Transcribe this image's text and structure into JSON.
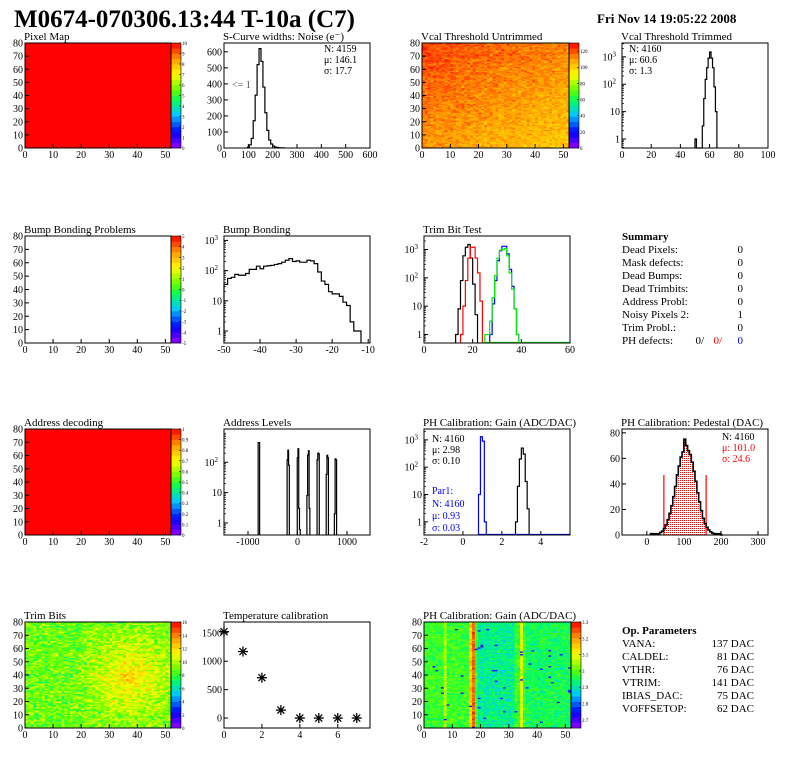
{
  "header": {
    "title": "M0674-070306.13:44 T-10a (C7)",
    "date": "Fri Nov 14 19:05:22 2008"
  },
  "palette": [
    "#9600ff",
    "#0000ff",
    "#00c8ff",
    "#00ff60",
    "#60ff00",
    "#ffff00",
    "#ff9900",
    "#ff0000"
  ],
  "chart_data": [
    {
      "id": "pixel_map",
      "type": "heatmap",
      "title": "Pixel Map",
      "xlim": [
        0,
        52
      ],
      "ylim": [
        0,
        80
      ],
      "xticks": [
        0,
        10,
        20,
        30,
        40,
        50
      ],
      "yticks": [
        0,
        10,
        20,
        30,
        40,
        50,
        60,
        70,
        80
      ],
      "zlim": [
        0,
        10
      ],
      "zticks": [
        0,
        1,
        2,
        3,
        4,
        5,
        6,
        7,
        8,
        9,
        10
      ],
      "constant_value": 10
    },
    {
      "id": "scurve",
      "type": "bar",
      "title": "S-Curve widths: Noise (e⁻)",
      "xlim": [
        0,
        600
      ],
      "ylim": [
        0,
        655
      ],
      "log_y": false,
      "xticks": [
        0,
        100,
        200,
        300,
        400,
        500,
        600
      ],
      "yticks": [
        0,
        100,
        200,
        300,
        400,
        500,
        600
      ],
      "series": [
        {
          "color": "#000000",
          "start": 96,
          "width": 8,
          "values": [
            5,
            20,
            60,
            170,
            330,
            520,
            620,
            540,
            380,
            220,
            110,
            50,
            25,
            12,
            6,
            3,
            2,
            1,
            1
          ]
        }
      ],
      "stats": [
        {
          "text": "N: 4159",
          "color": "#000000"
        },
        {
          "text": "μ: 146.1",
          "color": "#000000"
        },
        {
          "text": "σ: 17.7",
          "color": "#000000"
        }
      ],
      "annotation": "<= 1"
    },
    {
      "id": "vcal_untrimmed",
      "type": "heatmap",
      "title": "Vcal Threshold Untrimmed",
      "xlim": [
        0,
        52
      ],
      "ylim": [
        0,
        80
      ],
      "xticks": [
        0,
        10,
        20,
        30,
        40,
        50
      ],
      "yticks": [
        0,
        10,
        20,
        30,
        40,
        50,
        60,
        70,
        80
      ],
      "zlim": [
        0,
        130
      ],
      "zticks": [
        0,
        20,
        40,
        60,
        80,
        100,
        120
      ]
    },
    {
      "id": "vcal_trimmed",
      "type": "bar",
      "title": "Vcal Threshold Trimmed",
      "xlim": [
        0,
        100
      ],
      "ylim": [
        0.47,
        3200
      ],
      "log_y": true,
      "xticks": [
        0,
        20,
        40,
        60,
        80,
        100
      ],
      "yticks": [
        1,
        10,
        100,
        1000
      ],
      "series": [
        {
          "color": "#000000",
          "start": 50,
          "width": 1,
          "values": [
            1,
            0,
            0,
            0,
            0,
            3,
            30,
            150,
            400,
            900,
            1500,
            900,
            400,
            80,
            10
          ]
        }
      ],
      "stats": [
        {
          "text": "N: 4160",
          "color": "#000000"
        },
        {
          "text": "μ: 60.6",
          "color": "#000000"
        },
        {
          "text": "σ:  1.3",
          "color": "#000000"
        }
      ]
    },
    {
      "id": "bump_map",
      "type": "heatmap",
      "title": "Bump Bonding Problems",
      "xlim": [
        0,
        52
      ],
      "ylim": [
        0,
        80
      ],
      "xticks": [
        0,
        10,
        20,
        30,
        40,
        50
      ],
      "yticks": [
        0,
        10,
        20,
        30,
        40,
        50,
        60,
        70,
        80
      ],
      "zlim": [
        -5,
        5
      ],
      "zticks": [
        -5,
        -4,
        -3,
        -2,
        -1,
        0,
        1,
        2,
        3,
        4,
        5
      ],
      "empty": true
    },
    {
      "id": "bump_bonding",
      "type": "bar",
      "title": "Bump Bonding",
      "xlim": [
        -50,
        -9.5
      ],
      "ylim": [
        0.4,
        1400
      ],
      "log_y": true,
      "xticks": [
        -50,
        -40,
        -30,
        -20,
        -10
      ],
      "yticks": [
        1,
        10,
        100,
        1000
      ],
      "series": [
        {
          "color": "#000000",
          "start": -50,
          "width": 1,
          "values": [
            35,
            55,
            60,
            75,
            70,
            70,
            80,
            110,
            110,
            140,
            115,
            140,
            145,
            150,
            160,
            170,
            190,
            220,
            250,
            200,
            210,
            190,
            190,
            220,
            210,
            170,
            90,
            45,
            35,
            20,
            17,
            17,
            14,
            9,
            7,
            2,
            1,
            1
          ]
        }
      ]
    },
    {
      "id": "trim_bit_test",
      "type": "bar",
      "title": "Trim Bit Test",
      "xlim": [
        0,
        60
      ],
      "ylim": [
        0.5,
        3000
      ],
      "log_y": true,
      "xticks": [
        0,
        20,
        40,
        60
      ],
      "yticks": [
        1,
        10,
        100,
        1000
      ],
      "series": [
        {
          "color": "#000000",
          "start": 13,
          "width": 1,
          "values": [
            1,
            8,
            80,
            600,
            1200,
            1500,
            500,
            60,
            5
          ]
        },
        {
          "color": "#ff0000",
          "start": 15,
          "width": 1,
          "values": [
            1,
            10,
            80,
            500,
            1200,
            1200,
            500,
            150,
            15
          ]
        },
        {
          "color": "#0000ff",
          "start": 27,
          "width": 1,
          "values": [
            1,
            12,
            80,
            400,
            900,
            1300,
            1300,
            700,
            200,
            50,
            8,
            1
          ]
        },
        {
          "color": "#00ee00",
          "start": 25,
          "width": 1,
          "values": [
            1,
            1,
            3,
            20,
            120,
            500,
            950,
            1000,
            1100,
            600,
            150,
            40,
            8,
            1
          ]
        }
      ]
    },
    {
      "id": "address_decoding",
      "type": "heatmap",
      "title": "Address decoding",
      "xlim": [
        0,
        52
      ],
      "ylim": [
        0,
        80
      ],
      "xticks": [
        0,
        10,
        20,
        30,
        40,
        50
      ],
      "yticks": [
        0,
        10,
        20,
        30,
        40,
        50,
        60,
        70,
        80
      ],
      "zlim": [
        0,
        1
      ],
      "zticks": [
        0,
        0.1,
        0.2,
        0.3,
        0.4,
        0.5,
        0.6,
        0.7,
        0.8,
        0.9,
        1
      ],
      "constant_value": 1
    },
    {
      "id": "address_levels",
      "type": "bar",
      "title": "Address Levels",
      "xlim": [
        -1485,
        1465
      ],
      "ylim": [
        0.4,
        1250
      ],
      "log_y": true,
      "xticks": [
        -1000,
        0,
        1000
      ],
      "yticks": [
        1,
        10,
        100
      ],
      "series": [
        {
          "color": "#000000",
          "start": -795,
          "width": 15,
          "values": [
            450,
            450
          ]
        },
        {
          "color": "#000000",
          "start": -210,
          "width": 15,
          "values": [
            120,
            250,
            80
          ]
        },
        {
          "color": "#000000",
          "start": -5,
          "width": 15,
          "values": [
            140,
            280,
            3,
            0.6
          ]
        },
        {
          "color": "#000000",
          "start": 190,
          "width": 15,
          "values": [
            8,
            170,
            240,
            3
          ]
        },
        {
          "color": "#000000",
          "start": 395,
          "width": 15,
          "values": [
            120,
            200,
            190
          ]
        },
        {
          "color": "#000000",
          "start": 580,
          "width": 15,
          "values": [
            40,
            170,
            140
          ]
        },
        {
          "color": "#000000",
          "start": 745,
          "width": 15,
          "values": [
            2,
            130,
            120
          ]
        }
      ]
    },
    {
      "id": "ph_gain_hist",
      "type": "bar",
      "title": "PH Calibration: Gain (ADC/DAC)",
      "xlim": [
        -2,
        5.5
      ],
      "ylim": [
        0.33,
        2500
      ],
      "log_y": true,
      "xticks": [
        -2,
        0,
        2,
        4
      ],
      "yticks": [
        1,
        10,
        100,
        1000
      ],
      "series": [
        {
          "color": "#000000",
          "start": 2.7,
          "width": 0.1,
          "values": [
            1,
            20,
            200,
            500,
            300,
            30,
            3
          ]
        },
        {
          "color": "#0000ff",
          "start": 0.8,
          "width": 0.1,
          "values": [
            10,
            1300,
            900,
            1
          ]
        }
      ],
      "stats": [
        {
          "text": "N: 4160",
          "color": "#000000"
        },
        {
          "text": "μ: 2.98",
          "color": "#000000"
        },
        {
          "text": "σ: 0.10",
          "color": "#000000"
        }
      ],
      "stats2": [
        {
          "text": "Par1:",
          "color": "#0000ff"
        },
        {
          "text": "N: 4160",
          "color": "#0000ff"
        },
        {
          "text": "μ: 0.93",
          "color": "#0000ff"
        },
        {
          "text": "σ: 0.03",
          "color": "#0000ff"
        }
      ]
    },
    {
      "id": "ph_pedestal",
      "type": "bar",
      "title": "PH Calibration: Pedestal (DAC)",
      "xlim": [
        -67,
        327
      ],
      "ylim": [
        0,
        83
      ],
      "log_y": false,
      "xticks": [
        0,
        100,
        200,
        300
      ],
      "yticks": [
        0,
        20,
        40,
        60,
        80
      ],
      "series": [
        {
          "color": "#000000",
          "start": 10,
          "width": 5,
          "values": [
            1,
            1,
            1,
            1,
            1,
            2,
            3,
            5,
            8,
            12,
            17,
            23,
            30,
            38,
            47,
            54,
            61,
            65,
            75,
            70,
            66,
            63,
            57,
            50,
            42,
            33,
            26,
            19,
            13,
            9,
            6,
            4,
            2.5,
            1.5,
            1,
            1,
            1,
            1,
            0
          ]
        }
      ],
      "fill_range": [
        46,
        160
      ],
      "fill_color": "#ff0000",
      "stats": [
        {
          "text": "N: 4160",
          "color": "#000000"
        },
        {
          "text": "μ: 101.0",
          "color": "#ff0000"
        },
        {
          "text": "σ: 24.6",
          "color": "#ff0000"
        }
      ]
    },
    {
      "id": "trim_bits",
      "type": "heatmap",
      "title": "Trim Bits",
      "xlim": [
        0,
        52
      ],
      "ylim": [
        0,
        80
      ],
      "xticks": [
        0,
        10,
        20,
        30,
        40,
        50
      ],
      "yticks": [
        0,
        10,
        20,
        30,
        40,
        50,
        60,
        70,
        80
      ],
      "zlim": [
        0,
        16
      ],
      "zticks": [
        0,
        2,
        4,
        6,
        8,
        10,
        12,
        14,
        16
      ]
    },
    {
      "id": "temperature",
      "type": "scatter",
      "title": "Temperature calibration",
      "xlim": [
        0,
        7.7
      ],
      "ylim": [
        -175,
        1690
      ],
      "xticks": [
        0,
        2,
        4,
        6
      ],
      "yticks": [
        0,
        500,
        1000,
        1500
      ],
      "x": [
        0,
        1,
        2,
        3,
        4,
        5,
        6,
        7
      ],
      "y": [
        1520,
        1170,
        710,
        140,
        0,
        0,
        0,
        0
      ]
    },
    {
      "id": "ph_gain_map",
      "type": "heatmap",
      "title": "PH Calibration: Gain (ADC/DAC)",
      "xlim": [
        0,
        52
      ],
      "ylim": [
        0,
        80
      ],
      "xticks": [
        0,
        10,
        20,
        30,
        40,
        50
      ],
      "yticks": [
        0,
        10,
        20,
        30,
        40,
        50,
        60,
        70,
        80
      ],
      "zlim": [
        2.65,
        3.3
      ],
      "zticks": [
        2.7,
        2.8,
        2.9,
        3,
        3.1,
        3.2,
        3.3
      ]
    }
  ],
  "summary": {
    "title": "Summary",
    "rows": [
      {
        "label": "Dead Pixels:",
        "value": "0"
      },
      {
        "label": "Mask defects:",
        "value": "0"
      },
      {
        "label": "Dead Bumps:",
        "value": "0"
      },
      {
        "label": "Dead Trimbits:",
        "value": "0"
      },
      {
        "label": "Address Probl:",
        "value": "0"
      },
      {
        "label": "Noisy Pixels 2:",
        "value": "1"
      },
      {
        "label": "Trim Probl.:",
        "value": "0"
      }
    ],
    "ph_defects": {
      "label": "PH defects:",
      "values": [
        {
          "text": "0/",
          "color": "#000000"
        },
        {
          "text": "0/",
          "color": "#ff0000"
        },
        {
          "text": "0",
          "color": "#0000ff"
        }
      ]
    }
  },
  "op_parameters": {
    "title": "Op. Parameters",
    "rows": [
      {
        "label": "VANA:",
        "value": "137 DAC"
      },
      {
        "label": "CALDEL:",
        "value": "81 DAC"
      },
      {
        "label": "VTHR:",
        "value": "76 DAC"
      },
      {
        "label": "VTRIM:",
        "value": "141 DAC"
      },
      {
        "label": "IBIAS_DAC:",
        "value": "75 DAC"
      },
      {
        "label": "VOFFSETOP:",
        "value": "62 DAC"
      }
    ]
  }
}
